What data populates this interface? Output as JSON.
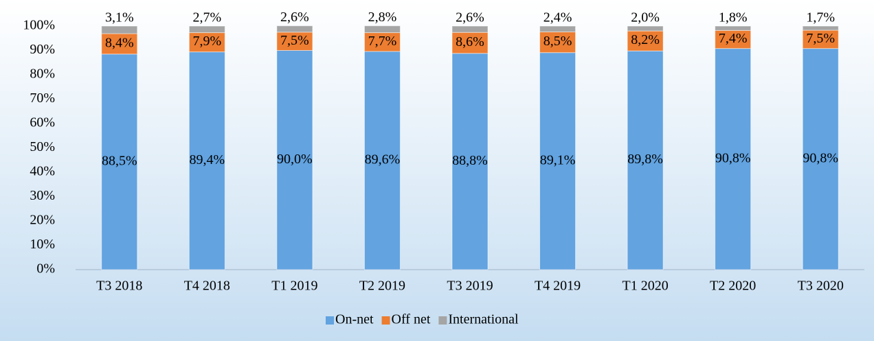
{
  "chart_data": {
    "type": "stacked_bar",
    "categories": [
      "T3 2018",
      "T4 2018",
      "T1 2019",
      "T2 2019",
      "T3 2019",
      "T4 2019",
      "T1 2020",
      "T2 2020",
      "T3 2020"
    ],
    "series": [
      {
        "name": "On-net",
        "color": "#62a3e0",
        "values": [
          88.5,
          89.4,
          90.0,
          89.6,
          88.8,
          89.1,
          89.8,
          90.8,
          90.8
        ],
        "value_labels": [
          "88,5%",
          "89,4%",
          "90,0%",
          "89,6%",
          "88,8%",
          "89,1%",
          "89,8%",
          "90,8%",
          "90,8%"
        ]
      },
      {
        "name": "Off net",
        "color": "#ed7d31",
        "values": [
          8.4,
          7.9,
          7.5,
          7.7,
          8.6,
          8.5,
          8.2,
          7.4,
          7.5
        ],
        "value_labels": [
          "8,4%",
          "7,9%",
          "7,5%",
          "7,7%",
          "8,6%",
          "8,5%",
          "8,2%",
          "7,4%",
          "7,5%"
        ]
      },
      {
        "name": "International",
        "color": "#a5a5a5",
        "values": [
          3.1,
          2.7,
          2.6,
          2.8,
          2.6,
          2.4,
          2.0,
          1.8,
          1.7
        ],
        "value_labels": [
          "3,1%",
          "2,7%",
          "2,6%",
          "2,8%",
          "2,6%",
          "2,4%",
          "2,0%",
          "1,8%",
          "1,7%"
        ]
      }
    ],
    "ylim": [
      0,
      100
    ],
    "yticks": [
      {
        "value": 0,
        "label": "0%"
      },
      {
        "value": 10,
        "label": "10%"
      },
      {
        "value": 20,
        "label": "20%"
      },
      {
        "value": 30,
        "label": "30%"
      },
      {
        "value": 40,
        "label": "40%"
      },
      {
        "value": 50,
        "label": "50%"
      },
      {
        "value": 60,
        "label": "60%"
      },
      {
        "value": 70,
        "label": "70%"
      },
      {
        "value": 80,
        "label": "80%"
      },
      {
        "value": 90,
        "label": "90%"
      },
      {
        "value": 100,
        "label": "100%"
      }
    ],
    "legend": "bottom"
  }
}
